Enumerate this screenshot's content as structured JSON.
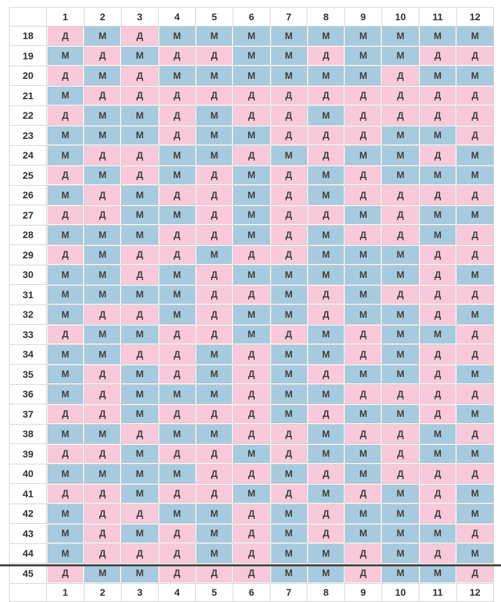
{
  "chart_data": {
    "type": "table",
    "corner_label": "",
    "girl_symbol": "Д",
    "boy_symbol": "М",
    "columns": [
      "1",
      "2",
      "3",
      "4",
      "5",
      "6",
      "7",
      "8",
      "9",
      "10",
      "11",
      "12"
    ],
    "rows": [
      {
        "age": "18",
        "cells": [
          "Д",
          "М",
          "Д",
          "М",
          "М",
          "М",
          "М",
          "М",
          "М",
          "М",
          "М",
          "М"
        ]
      },
      {
        "age": "19",
        "cells": [
          "М",
          "Д",
          "М",
          "Д",
          "Д",
          "М",
          "М",
          "Д",
          "М",
          "М",
          "Д",
          "Д"
        ]
      },
      {
        "age": "20",
        "cells": [
          "Д",
          "М",
          "Д",
          "М",
          "М",
          "М",
          "М",
          "М",
          "М",
          "Д",
          "М",
          "М"
        ]
      },
      {
        "age": "21",
        "cells": [
          "М",
          "Д",
          "Д",
          "Д",
          "Д",
          "Д",
          "Д",
          "Д",
          "Д",
          "Д",
          "Д",
          "Д"
        ]
      },
      {
        "age": "22",
        "cells": [
          "Д",
          "М",
          "М",
          "Д",
          "М",
          "Д",
          "Д",
          "М",
          "Д",
          "Д",
          "Д",
          "Д"
        ]
      },
      {
        "age": "23",
        "cells": [
          "М",
          "М",
          "М",
          "Д",
          "М",
          "М",
          "Д",
          "Д",
          "Д",
          "М",
          "М",
          "Д"
        ]
      },
      {
        "age": "24",
        "cells": [
          "М",
          "Д",
          "Д",
          "М",
          "М",
          "Д",
          "М",
          "Д",
          "М",
          "М",
          "Д",
          "М"
        ]
      },
      {
        "age": "25",
        "cells": [
          "Д",
          "М",
          "Д",
          "М",
          "Д",
          "М",
          "Д",
          "М",
          "Д",
          "М",
          "М",
          "М"
        ]
      },
      {
        "age": "26",
        "cells": [
          "М",
          "Д",
          "М",
          "Д",
          "Д",
          "М",
          "Д",
          "М",
          "Д",
          "Д",
          "Д",
          "Д"
        ]
      },
      {
        "age": "27",
        "cells": [
          "Д",
          "Д",
          "М",
          "М",
          "Д",
          "М",
          "Д",
          "Д",
          "М",
          "Д",
          "М",
          "М"
        ]
      },
      {
        "age": "28",
        "cells": [
          "М",
          "М",
          "М",
          "Д",
          "Д",
          "М",
          "Д",
          "М",
          "Д",
          "Д",
          "М",
          "Д"
        ]
      },
      {
        "age": "29",
        "cells": [
          "Д",
          "М",
          "Д",
          "Д",
          "М",
          "Д",
          "Д",
          "М",
          "М",
          "М",
          "Д",
          "Д"
        ]
      },
      {
        "age": "30",
        "cells": [
          "М",
          "М",
          "Д",
          "М",
          "Д",
          "М",
          "М",
          "М",
          "М",
          "М",
          "Д",
          "М"
        ]
      },
      {
        "age": "31",
        "cells": [
          "М",
          "М",
          "М",
          "М",
          "Д",
          "Д",
          "М",
          "Д",
          "М",
          "Д",
          "Д",
          "Д"
        ]
      },
      {
        "age": "32",
        "cells": [
          "М",
          "Д",
          "Д",
          "М",
          "Д",
          "М",
          "М",
          "Д",
          "М",
          "М",
          "Д",
          "М"
        ]
      },
      {
        "age": "33",
        "cells": [
          "Д",
          "М",
          "М",
          "Д",
          "Д",
          "М",
          "Д",
          "М",
          "Д",
          "М",
          "М",
          "Д"
        ]
      },
      {
        "age": "34",
        "cells": [
          "М",
          "М",
          "Д",
          "Д",
          "М",
          "Д",
          "М",
          "М",
          "Д",
          "М",
          "Д",
          "Д"
        ]
      },
      {
        "age": "35",
        "cells": [
          "М",
          "Д",
          "М",
          "Д",
          "М",
          "Д",
          "М",
          "Д",
          "М",
          "М",
          "Д",
          "М"
        ]
      },
      {
        "age": "36",
        "cells": [
          "М",
          "Д",
          "М",
          "М",
          "М",
          "Д",
          "М",
          "М",
          "Д",
          "Д",
          "Д",
          "Д"
        ]
      },
      {
        "age": "37",
        "cells": [
          "Д",
          "Д",
          "М",
          "Д",
          "Д",
          "Д",
          "М",
          "Д",
          "М",
          "М",
          "Д",
          "М"
        ]
      },
      {
        "age": "38",
        "cells": [
          "М",
          "М",
          "Д",
          "М",
          "М",
          "Д",
          "Д",
          "М",
          "Д",
          "Д",
          "М",
          "Д"
        ]
      },
      {
        "age": "39",
        "cells": [
          "Д",
          "Д",
          "М",
          "Д",
          "Д",
          "М",
          "Д",
          "М",
          "М",
          "Д",
          "М",
          "М"
        ]
      },
      {
        "age": "40",
        "cells": [
          "М",
          "М",
          "М",
          "М",
          "Д",
          "Д",
          "М",
          "Д",
          "М",
          "Д",
          "Д",
          "Д"
        ]
      },
      {
        "age": "41",
        "cells": [
          "Д",
          "Д",
          "М",
          "Д",
          "Д",
          "М",
          "Д",
          "М",
          "Д",
          "М",
          "Д",
          "М"
        ]
      },
      {
        "age": "42",
        "cells": [
          "М",
          "Д",
          "Д",
          "М",
          "М",
          "Д",
          "М",
          "Д",
          "М",
          "М",
          "Д",
          "М"
        ]
      },
      {
        "age": "43",
        "cells": [
          "М",
          "Д",
          "М",
          "Д",
          "М",
          "Д",
          "М",
          "Д",
          "М",
          "М",
          "М",
          "Д"
        ]
      },
      {
        "age": "44",
        "cells": [
          "М",
          "Д",
          "Д",
          "Д",
          "М",
          "Д",
          "М",
          "М",
          "Д",
          "М",
          "Д",
          "М"
        ]
      },
      {
        "age": "45",
        "cells": [
          "Д",
          "М",
          "М",
          "Д",
          "Д",
          "Д",
          "М",
          "М",
          "Д",
          "М",
          "М",
          "Д"
        ]
      }
    ],
    "colors": {
      "girl_bg": "#f8c9da",
      "boy_bg": "#a7cade",
      "cell_text": "#404040",
      "header_text": "#2f2f2f",
      "grid": "#d5d5d5",
      "bottom_rule": "#474747"
    }
  }
}
